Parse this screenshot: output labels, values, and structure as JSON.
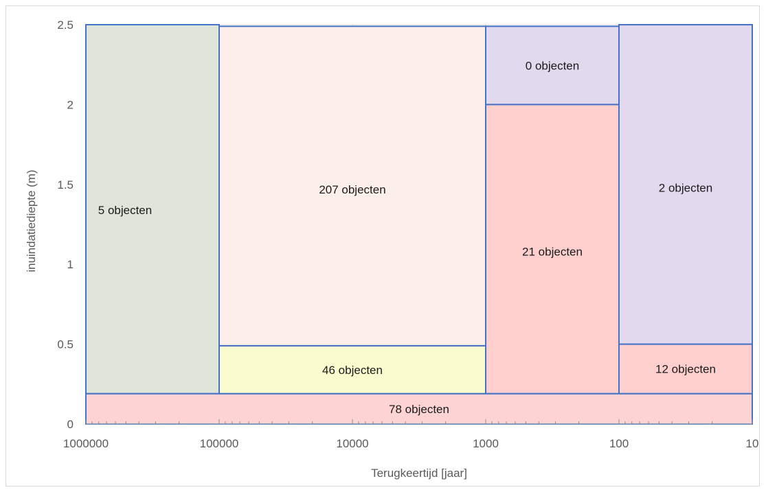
{
  "chart_data": {
    "type": "heatmap",
    "xlabel": "Terugkeertijd [jaar]",
    "ylabel": "inuindatiediepte (m)",
    "x_scale": "log",
    "x_reversed": true,
    "xlim": [
      1000000,
      10
    ],
    "ylim": [
      0,
      2.5
    ],
    "x_ticks": [
      {
        "value": 1000000,
        "label": "1000000"
      },
      {
        "value": 100000,
        "label": "100000"
      },
      {
        "value": 10000,
        "label": "10000"
      },
      {
        "value": 1000,
        "label": "1000"
      },
      {
        "value": 100,
        "label": "100"
      },
      {
        "value": 10,
        "label": "10"
      }
    ],
    "y_ticks": [
      {
        "value": 0,
        "label": "0"
      },
      {
        "value": 0.5,
        "label": "0.5"
      },
      {
        "value": 1,
        "label": "1"
      },
      {
        "value": 1.5,
        "label": "1.5"
      },
      {
        "value": 2,
        "label": "2"
      },
      {
        "value": 2.5,
        "label": "2.5"
      }
    ],
    "grid": true,
    "regions": [
      {
        "x": [
          1000000,
          100000
        ],
        "y": [
          0.19,
          2.5
        ],
        "label": "5 objecten",
        "color": "#dfe5d9"
      },
      {
        "x": [
          100000,
          1000
        ],
        "y": [
          0.49,
          2.49
        ],
        "label": "207 objecten",
        "color": "#fcefe9"
      },
      {
        "x": [
          100000,
          1000
        ],
        "y": [
          0.19,
          0.49
        ],
        "label": "46 objecten",
        "color": "#fafcd0"
      },
      {
        "x": [
          1000,
          100
        ],
        "y": [
          2.0,
          2.49
        ],
        "label": "0 objecten",
        "color": "#e1d9ee"
      },
      {
        "x": [
          1000,
          100
        ],
        "y": [
          0.19,
          2.0
        ],
        "label": "21 objecten",
        "color": "#fecfcd"
      },
      {
        "x": [
          100,
          10
        ],
        "y": [
          0.5,
          2.5
        ],
        "label": "2 objecten",
        "color": "#e3d9ee"
      },
      {
        "x": [
          100,
          10
        ],
        "y": [
          0.19,
          0.5
        ],
        "label": "12 objecten",
        "color": "#fecfcd"
      },
      {
        "x": [
          1000000,
          10
        ],
        "y": [
          0,
          0.19
        ],
        "label": "78 objecten",
        "color": "#fdd4d3"
      }
    ],
    "border_color": "#4472c4",
    "grid_color": "#d9d9d9"
  }
}
